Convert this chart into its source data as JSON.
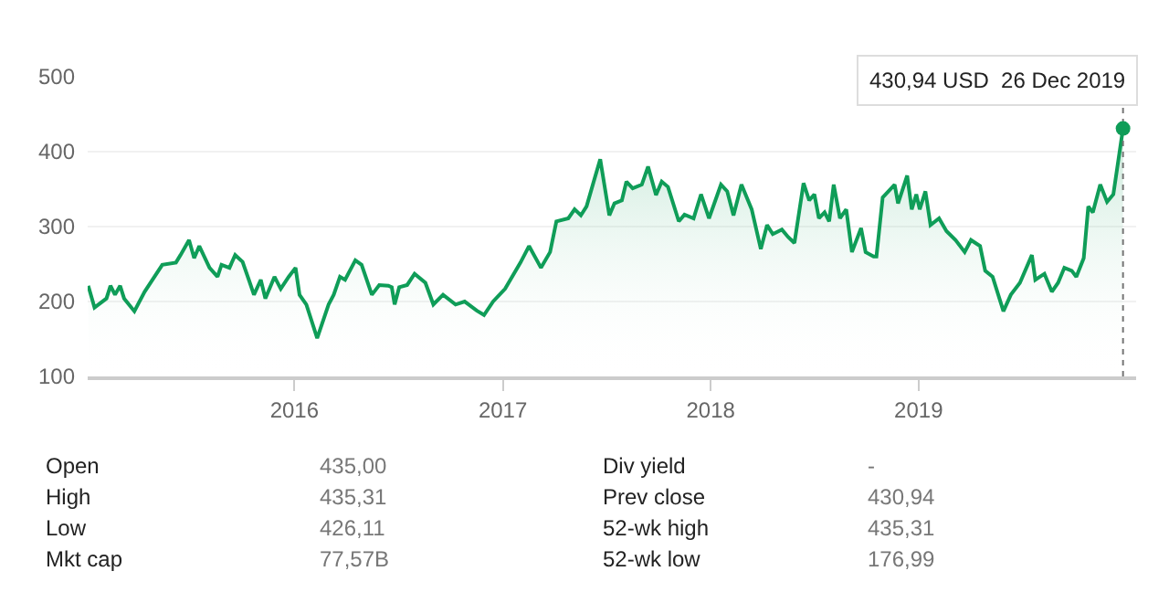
{
  "chart_data": {
    "type": "area",
    "x": [
      "2015-01-04",
      "2015-01-15",
      "2015-02-05",
      "2015-02-12",
      "2015-02-20",
      "2015-03-01",
      "2015-03-08",
      "2015-03-26",
      "2015-04-13",
      "2015-05-14",
      "2015-06-07",
      "2015-06-15",
      "2015-06-30",
      "2015-07-09",
      "2015-07-18",
      "2015-08-05",
      "2015-08-19",
      "2015-08-26",
      "2015-09-09",
      "2015-09-19",
      "2015-10-02",
      "2015-10-13",
      "2015-10-22",
      "2015-11-03",
      "2015-11-11",
      "2015-11-27",
      "2015-12-08",
      "2015-12-22",
      "2016-01-03",
      "2016-01-10",
      "2016-01-22",
      "2016-02-10",
      "2016-03-01",
      "2016-03-10",
      "2016-03-21",
      "2016-03-30",
      "2016-04-17",
      "2016-04-28",
      "2016-05-16",
      "2016-05-29",
      "2016-06-14",
      "2016-06-20",
      "2016-06-25",
      "2016-07-03",
      "2016-07-17",
      "2016-07-30",
      "2016-08-18",
      "2016-09-01",
      "2016-09-18",
      "2016-10-10",
      "2016-10-26",
      "2016-11-16",
      "2016-11-29",
      "2016-12-15",
      "2017-01-05",
      "2017-02-01",
      "2017-02-16",
      "2017-03-09",
      "2017-03-25",
      "2017-04-05",
      "2017-04-26",
      "2017-05-07",
      "2017-05-18",
      "2017-05-28",
      "2017-06-08",
      "2017-06-21",
      "2017-07-07",
      "2017-07-16",
      "2017-07-29",
      "2017-08-06",
      "2017-08-17",
      "2017-09-02",
      "2017-09-13",
      "2017-09-27",
      "2017-10-07",
      "2017-10-18",
      "2017-11-06",
      "2017-11-16",
      "2017-12-02",
      "2017-12-15",
      "2017-12-29",
      "2018-01-19",
      "2018-01-30",
      "2018-02-10",
      "2018-02-24",
      "2018-03-14",
      "2018-03-30",
      "2018-04-10",
      "2018-04-20",
      "2018-05-06",
      "2018-05-17",
      "2018-05-28",
      "2018-06-13",
      "2018-06-23",
      "2018-07-02",
      "2018-07-10",
      "2018-07-20",
      "2018-07-28",
      "2018-08-05",
      "2018-08-16",
      "2018-08-27",
      "2018-09-06",
      "2018-09-22",
      "2018-09-30",
      "2018-10-14",
      "2018-10-19",
      "2018-10-30",
      "2018-11-20",
      "2018-11-26",
      "2018-12-12",
      "2018-12-20",
      "2018-12-28",
      "2019-01-03",
      "2019-01-13",
      "2019-01-22",
      "2019-02-06",
      "2019-02-19",
      "2019-03-07",
      "2019-03-23",
      "2019-04-03",
      "2019-04-19",
      "2019-04-28",
      "2019-05-11",
      "2019-05-30",
      "2019-06-12",
      "2019-06-28",
      "2019-07-19",
      "2019-07-25",
      "2019-08-10",
      "2019-08-23",
      "2019-09-03",
      "2019-09-14",
      "2019-09-27",
      "2019-10-05",
      "2019-10-18",
      "2019-10-26",
      "2019-11-03",
      "2019-11-16",
      "2019-11-28",
      "2019-12-09",
      "2019-12-26"
    ],
    "series": [
      {
        "color": "#0f9d58",
        "values": [
          221,
          192,
          204,
          221,
          209,
          221,
          204,
          187,
          213,
          249,
          252,
          262,
          282,
          258,
          274,
          245,
          233,
          249,
          245,
          262,
          253,
          229,
          209,
          229,
          204,
          233,
          217,
          233,
          245,
          209,
          196,
          151,
          196,
          209,
          233,
          229,
          255,
          249,
          209,
          222,
          221,
          219,
          196,
          219,
          222,
          237,
          225,
          196,
          209,
          196,
          200,
          188,
          182,
          200,
          217,
          252,
          274,
          245,
          266,
          307,
          311,
          323,
          315,
          327,
          356,
          390,
          315,
          331,
          335,
          360,
          351,
          356,
          380,
          342,
          360,
          353,
          307,
          316,
          311,
          343,
          311,
          356,
          347,
          315,
          356,
          323,
          270,
          302,
          290,
          296,
          286,
          278,
          358,
          335,
          343,
          311,
          319,
          307,
          356,
          311,
          323,
          266,
          298,
          266,
          260,
          260,
          339,
          356,
          331,
          368,
          323,
          343,
          323,
          347,
          302,
          311,
          294,
          282,
          266,
          282,
          274,
          241,
          233,
          187,
          209,
          225,
          262,
          229,
          237,
          213,
          225,
          245,
          241,
          233,
          258,
          327,
          319,
          356,
          333,
          343,
          430.94
        ]
      }
    ],
    "xlim": [
      "2015-01-03",
      "2020-01-18"
    ],
    "xticks": [
      {
        "value": "2016-01-01",
        "label": "2016"
      },
      {
        "value": "2017-01-01",
        "label": "2017"
      },
      {
        "value": "2018-01-01",
        "label": "2018"
      },
      {
        "value": "2019-01-01",
        "label": "2019"
      }
    ],
    "ylim": [
      100,
      500
    ],
    "yticks": [
      100,
      200,
      300,
      400,
      500
    ],
    "grid": "y",
    "ref_lines": [
      {
        "axis": "x",
        "value": "2019-12-26",
        "color": "#757575",
        "line_style": "dotted"
      }
    ],
    "annotations": [
      {
        "text": "430,94 USD  26 Dec 2019",
        "x": "2019-12-26",
        "y": 430.94
      },
      "Open",
      "435,00",
      "Div yield",
      "-",
      "High",
      "435,31",
      "Prev close",
      "430,94",
      "Low",
      "426,11",
      "52-wk high",
      "435,31",
      "Mkt cap",
      "77,57B",
      "52-wk low",
      "176,99"
    ]
  }
}
